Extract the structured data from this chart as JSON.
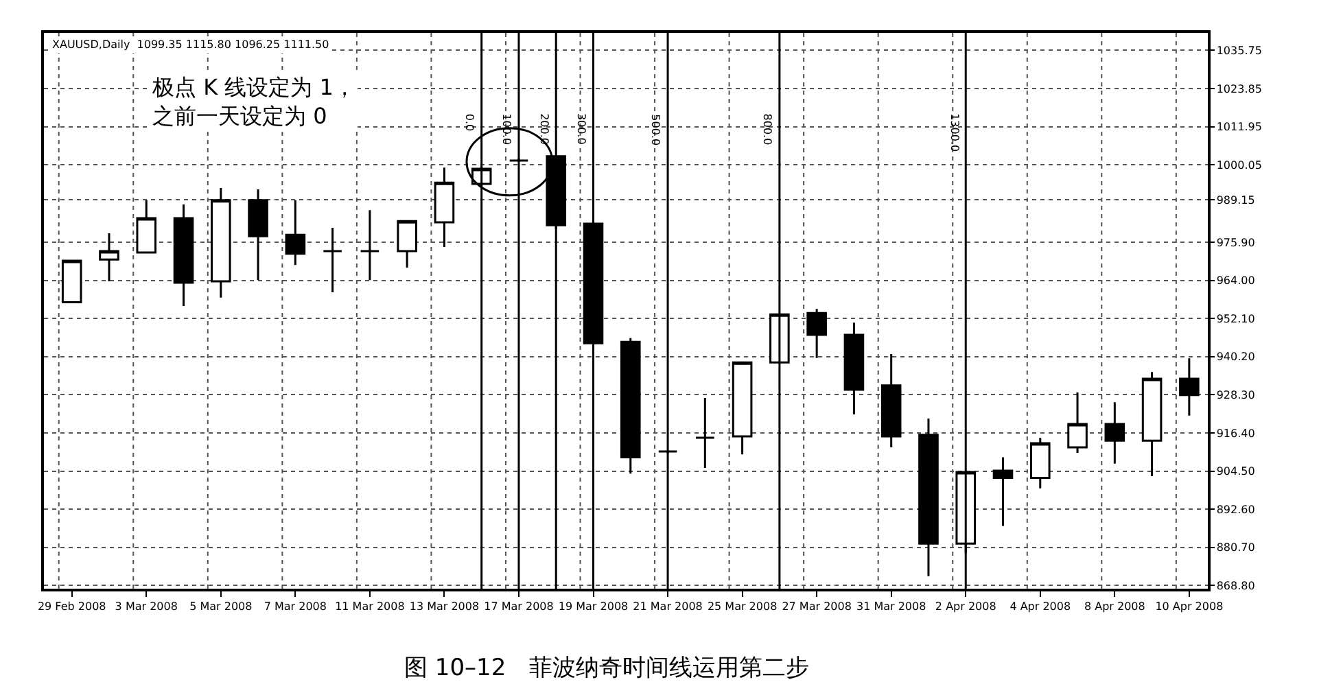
{
  "chart_data": {
    "type": "candlestick",
    "title": "图 10–12　菲波纳奇时间线运用第二步",
    "annotations": [
      "XAUUSD,Daily  1099.35 1115.80 1096.25 1111.50",
      "极点 K 线设定为 1，之前一天设定为 0",
      "0.0",
      "100.0",
      "200.0",
      "300.0",
      "500.0",
      "800.0",
      "1300.0"
    ],
    "categories": [
      "29 Feb 2008",
      null,
      "3 Mar 2008",
      null,
      "5 Mar 2008",
      null,
      "7 Mar 2008",
      null,
      "11 Mar 2008",
      null,
      "13 Mar 2008",
      null,
      "17 Mar 2008",
      null,
      "19 Mar 2008",
      null,
      "21 Mar 2008",
      null,
      "25 Mar 2008",
      null,
      "27 Mar 2008",
      null,
      "31 Mar 2008",
      null,
      "2 Apr 2008",
      null,
      "4 Apr 2008",
      null,
      "8 Apr 2008",
      null,
      "10 Apr 2008"
    ],
    "ohlc": [
      [
        957.2,
        970.1,
        957.2,
        970.1
      ],
      [
        970.5,
        978.7,
        963.7,
        973.1
      ],
      [
        972.7,
        989.0,
        972.7,
        983.4
      ],
      [
        983.4,
        987.7,
        956.0,
        963.3
      ],
      [
        963.7,
        992.8,
        958.6,
        989.0
      ],
      [
        989.0,
        992.4,
        964.1,
        977.8
      ],
      [
        978.2,
        989.0,
        968.8,
        972.3
      ],
      [
        973.1,
        980.4,
        960.3,
        973.1
      ],
      [
        973.1,
        985.9,
        964.1,
        973.1
      ],
      [
        973.1,
        982.5,
        968.0,
        982.5
      ],
      [
        982.1,
        999.2,
        974.4,
        994.5
      ],
      [
        994.1,
        999.5,
        993.5,
        998.8
      ],
      [
        1001.4,
        1002.0,
        1001.0,
        1001.4
      ],
      [
        1002.7,
        1003.0,
        980.0,
        981.2
      ],
      [
        981.7,
        982.0,
        944.0,
        944.4
      ],
      [
        944.8,
        946.0,
        903.7,
        908.8
      ],
      [
        910.6,
        911.0,
        910.0,
        910.6
      ],
      [
        914.9,
        927.3,
        905.5,
        914.9
      ],
      [
        915.3,
        938.4,
        909.7,
        938.4
      ],
      [
        938.4,
        953.4,
        938.4,
        953.4
      ],
      [
        953.8,
        955.1,
        939.8,
        947.0
      ],
      [
        947.0,
        950.8,
        922.2,
        929.9
      ],
      [
        931.2,
        941.0,
        911.9,
        915.3
      ],
      [
        915.8,
        920.9,
        871.7,
        881.9
      ],
      [
        881.9,
        904.2,
        879.0,
        904.2
      ],
      [
        904.6,
        908.8,
        887.4,
        902.4
      ],
      [
        902.4,
        914.9,
        899.1,
        913.2
      ],
      [
        911.9,
        929.0,
        910.2,
        919.2
      ],
      [
        919.2,
        926.0,
        906.8,
        914.0
      ],
      [
        914.0,
        935.4,
        902.9,
        933.3
      ],
      [
        933.3,
        939.7,
        921.8,
        928.2
      ]
    ],
    "ylim": [
      867.8,
      1041.2
    ],
    "yticks": [
      {
        "value": 1035.75,
        "label": "1035.75"
      },
      {
        "value": 1023.85,
        "label": "1023.85"
      },
      {
        "value": 1011.95,
        "label": "1011.95"
      },
      {
        "value": 1000.05,
        "label": "1000.05"
      },
      {
        "value": 989.15,
        "label": "989.15"
      },
      {
        "value": 975.9,
        "label": "975.90"
      },
      {
        "value": 964.0,
        "label": "964.00"
      },
      {
        "value": 952.1,
        "label": "952.10"
      },
      {
        "value": 940.2,
        "label": "940.20"
      },
      {
        "value": 928.3,
        "label": "928.30"
      },
      {
        "value": 916.4,
        "label": "916.40"
      },
      {
        "value": 904.5,
        "label": "904.50"
      },
      {
        "value": 892.6,
        "label": "892.60"
      },
      {
        "value": 880.7,
        "label": "880.70"
      },
      {
        "value": 868.8,
        "label": "868.80"
      }
    ],
    "grid": true
  }
}
